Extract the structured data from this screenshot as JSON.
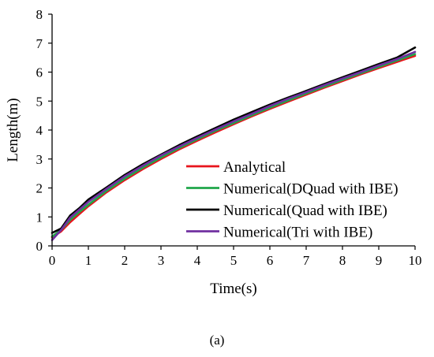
{
  "chart_data": {
    "type": "line",
    "xlabel": "Time(s)",
    "ylabel": "Length(m)",
    "xlim": [
      0,
      10
    ],
    "ylim": [
      0,
      8
    ],
    "xticks": [
      0,
      1,
      2,
      3,
      4,
      5,
      6,
      7,
      8,
      9,
      10
    ],
    "yticks": [
      0,
      1,
      2,
      3,
      4,
      5,
      6,
      7,
      8
    ],
    "grid": false,
    "legend_position": "center-right",
    "x": [
      0,
      0.25,
      0.5,
      0.75,
      1,
      1.5,
      2,
      2.5,
      3,
      3.5,
      4,
      4.5,
      5,
      5.5,
      6,
      6.5,
      7,
      7.5,
      8,
      8.5,
      9,
      9.5,
      10
    ],
    "series": [
      {
        "name": "Analytical",
        "color": "#e8141c",
        "values": [
          0.3,
          0.5,
          0.82,
          1.1,
          1.37,
          1.85,
          2.27,
          2.65,
          3.0,
          3.33,
          3.63,
          3.92,
          4.2,
          4.47,
          4.73,
          4.98,
          5.22,
          5.46,
          5.69,
          5.92,
          6.14,
          6.35,
          6.56
        ]
      },
      {
        "name": "Numerical(DQuad with IBE)",
        "color": "#1fa64a",
        "values": [
          0.32,
          0.55,
          0.9,
          1.17,
          1.42,
          1.9,
          2.32,
          2.7,
          3.05,
          3.38,
          3.68,
          3.97,
          4.24,
          4.51,
          4.77,
          5.02,
          5.26,
          5.5,
          5.73,
          5.96,
          6.18,
          6.4,
          6.62
        ]
      },
      {
        "name": "Numerical(Quad with IBE)",
        "color": "#000000",
        "values": [
          0.45,
          0.6,
          1.05,
          1.3,
          1.6,
          2.02,
          2.45,
          2.82,
          3.15,
          3.48,
          3.78,
          4.07,
          4.36,
          4.62,
          4.88,
          5.12,
          5.35,
          5.59,
          5.82,
          6.05,
          6.28,
          6.5,
          6.85
        ]
      },
      {
        "name": "Numerical(Tri with IBE)",
        "color": "#7030a0",
        "values": [
          0.2,
          0.55,
          0.98,
          1.25,
          1.52,
          1.97,
          2.4,
          2.77,
          3.12,
          3.43,
          3.73,
          4.02,
          4.3,
          4.56,
          4.83,
          5.08,
          5.31,
          5.55,
          5.78,
          6.0,
          6.23,
          6.45,
          6.7
        ]
      }
    ],
    "caption": "(a)"
  }
}
